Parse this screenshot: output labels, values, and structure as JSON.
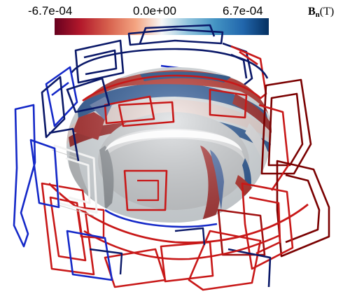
{
  "colorbar": {
    "min_label": "-6.7e-04",
    "mid_label": "0.0e+00",
    "max_label": "6.7e-04",
    "label_symbol": "B",
    "label_subscript": "n",
    "label_unit": "(T)",
    "min_value": -0.00067,
    "max_value": 0.00067,
    "colors": [
      "#67001f",
      "#b2182b",
      "#d6604d",
      "#f4a582",
      "#f7f7f7",
      "#92c5de",
      "#4393c3",
      "#2166ac",
      "#053061"
    ]
  },
  "coil_colors": {
    "dark_red": "#7a0000",
    "red": "#c81818",
    "navy": "#0a1868",
    "blue": "#1428c8",
    "white": "#f2f2f2"
  }
}
